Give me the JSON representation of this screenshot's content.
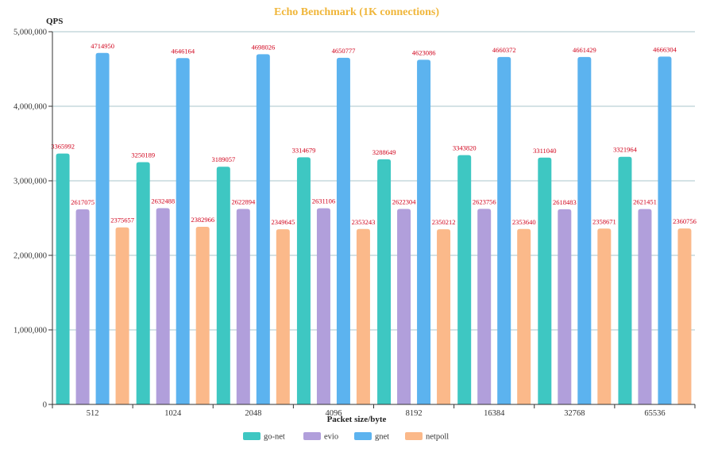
{
  "chart_data": {
    "type": "bar",
    "title": "Echo Benchmark (1K connections)",
    "xlabel": "Packet size/byte",
    "ylabel": "QPS",
    "ylim": [
      0,
      5000000
    ],
    "yticks": [
      0,
      1000000,
      2000000,
      3000000,
      4000000,
      5000000
    ],
    "ytick_labels": [
      "0",
      "1,000,000",
      "2,000,000",
      "3,000,000",
      "4,000,000",
      "5,000,000"
    ],
    "categories": [
      "512",
      "1024",
      "2048",
      "4096",
      "8192",
      "16384",
      "32768",
      "65536"
    ],
    "grid": "horizontal",
    "legend_position": "bottom-center",
    "series": [
      {
        "name": "go-net",
        "color": "#3ec7c2",
        "values": [
          3365992,
          3250189,
          3189057,
          3314679,
          3288649,
          3343820,
          3311040,
          3321964
        ]
      },
      {
        "name": "evio",
        "color": "#b19fdb",
        "values": [
          2617075,
          2632488,
          2622894,
          2631106,
          2622304,
          2623756,
          2618483,
          2621451
        ]
      },
      {
        "name": "gnet",
        "color": "#5cb3ef",
        "values": [
          4714950,
          4646164,
          4698026,
          4650777,
          4623086,
          4660372,
          4661429,
          4666304
        ]
      },
      {
        "name": "netpoll",
        "color": "#fbb98a",
        "values": [
          2375657,
          2382966,
          2349645,
          2353243,
          2350212,
          2353640,
          2358671,
          2360756
        ]
      }
    ],
    "data_label_color": "#d0021b",
    "axis_color": "#5a9aa8"
  }
}
